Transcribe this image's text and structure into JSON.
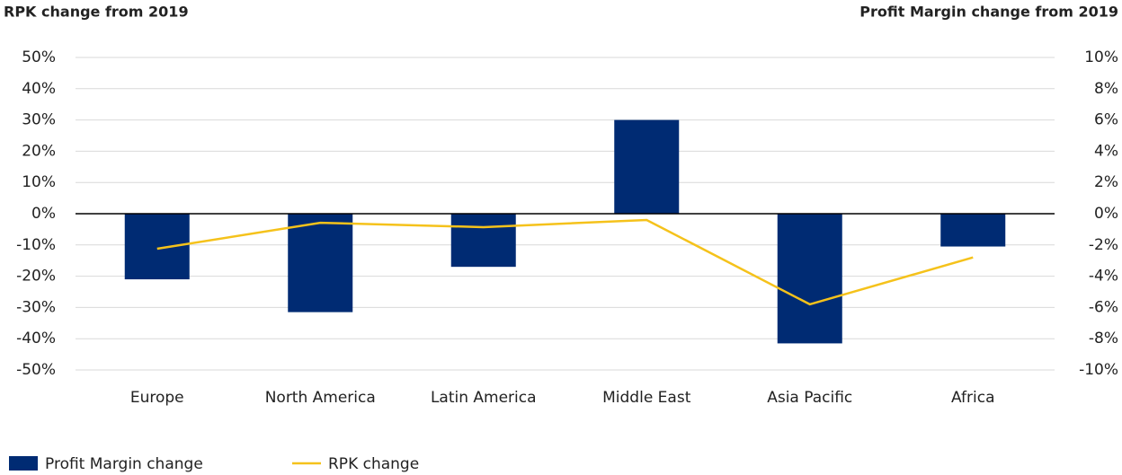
{
  "chart_data": {
    "type": "bar",
    "y_label": "RPK change from 2019",
    "y2_label": "Profit Margin change from 2019",
    "categories": [
      "Europe",
      "North America",
      "Latin America",
      "Middle East",
      "Asia Pacific",
      "Africa"
    ],
    "series": [
      {
        "name": "Profit Margin change",
        "type": "bar",
        "axis": "y2",
        "color": "#002b73",
        "values": [
          -4.2,
          -6.3,
          -3.4,
          6,
          -8.3,
          -2.1
        ]
      },
      {
        "name": "RPK change",
        "type": "line",
        "axis": "y",
        "color": "#f5c21b",
        "values": [
          -11.2,
          -2.9,
          -4.3,
          -2,
          -29,
          -14
        ]
      }
    ],
    "ylim": [
      -50,
      50
    ],
    "yticks": [
      {
        "value": -50,
        "label": "-50%"
      },
      {
        "value": -40,
        "label": "-40%"
      },
      {
        "value": -30,
        "label": "-30%"
      },
      {
        "value": -20,
        "label": "-20%"
      },
      {
        "value": -10,
        "label": "-10%"
      },
      {
        "value": 0,
        "label": "0%"
      },
      {
        "value": 10,
        "label": "10%"
      },
      {
        "value": 20,
        "label": "20%"
      },
      {
        "value": 30,
        "label": "30%"
      },
      {
        "value": 40,
        "label": "40%"
      },
      {
        "value": 50,
        "label": "50%"
      }
    ],
    "y2lim": [
      -10,
      10
    ],
    "y2ticks": [
      {
        "value": -10,
        "label": "-10%"
      },
      {
        "value": -8,
        "label": "-8%"
      },
      {
        "value": -6,
        "label": "-6%"
      },
      {
        "value": -4,
        "label": "-4%"
      },
      {
        "value": -2,
        "label": "-2%"
      },
      {
        "value": 0,
        "label": "0%"
      },
      {
        "value": 2,
        "label": "2%"
      },
      {
        "value": 4,
        "label": "4%"
      },
      {
        "value": 6,
        "label": "6%"
      },
      {
        "value": 8,
        "label": "8%"
      },
      {
        "value": 10,
        "label": "10%"
      }
    ],
    "grid": true
  }
}
